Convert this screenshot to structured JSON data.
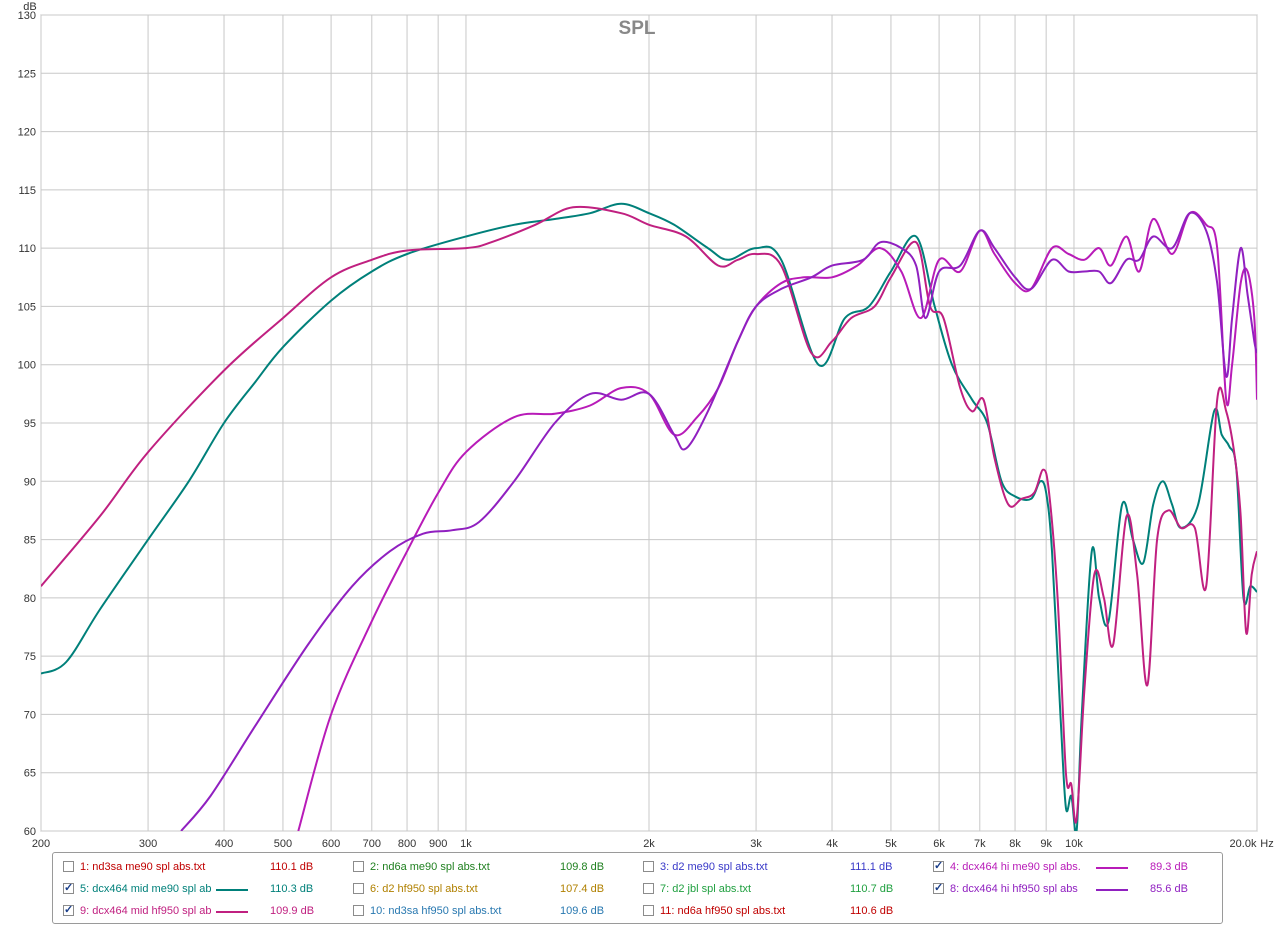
{
  "chart_data": {
    "type": "line",
    "title": "SPL",
    "ylabel": "dB",
    "xlabel": "",
    "x_unit": "Hz",
    "x_scale": "log",
    "xlim": [
      200,
      20000
    ],
    "ylim": [
      60,
      130
    ],
    "y_ticks": [
      "130",
      "125",
      "120",
      "115",
      "110",
      "105",
      "100",
      "95",
      "90",
      "85",
      "80",
      "75",
      "70",
      "65",
      "60"
    ],
    "x_ticks": [
      {
        "v": 200,
        "label": "200"
      },
      {
        "v": 300,
        "label": "300"
      },
      {
        "v": 400,
        "label": "400"
      },
      {
        "v": 500,
        "label": "500"
      },
      {
        "v": 600,
        "label": "600"
      },
      {
        "v": 700,
        "label": "700"
      },
      {
        "v": 800,
        "label": "800"
      },
      {
        "v": 900,
        "label": "900"
      },
      {
        "v": 1000,
        "label": "1k"
      },
      {
        "v": 2000,
        "label": "2k"
      },
      {
        "v": 3000,
        "label": "3k"
      },
      {
        "v": 4000,
        "label": "4k"
      },
      {
        "v": 5000,
        "label": "5k"
      },
      {
        "v": 6000,
        "label": "6k"
      },
      {
        "v": 7000,
        "label": "7k"
      },
      {
        "v": 8000,
        "label": "8k"
      },
      {
        "v": 9000,
        "label": "9k"
      },
      {
        "v": 10000,
        "label": "10k"
      },
      {
        "v": 20000,
        "label": "20.0k"
      }
    ],
    "grid": true,
    "series": [
      {
        "name": "5: dcx464 mid me90 spl ab",
        "color": "#00807a",
        "points": [
          [
            200,
            73.5
          ],
          [
            220,
            74.5
          ],
          [
            250,
            79
          ],
          [
            300,
            85
          ],
          [
            350,
            90
          ],
          [
            400,
            95
          ],
          [
            450,
            98.5
          ],
          [
            500,
            101.5
          ],
          [
            600,
            105.5
          ],
          [
            700,
            108
          ],
          [
            800,
            109.5
          ],
          [
            1000,
            111
          ],
          [
            1200,
            112
          ],
          [
            1400,
            112.5
          ],
          [
            1600,
            113
          ],
          [
            1800,
            113.8
          ],
          [
            2000,
            113
          ],
          [
            2200,
            112
          ],
          [
            2500,
            110
          ],
          [
            2700,
            109
          ],
          [
            3000,
            110
          ],
          [
            3300,
            109
          ],
          [
            3800,
            100
          ],
          [
            4200,
            104
          ],
          [
            4600,
            105
          ],
          [
            5000,
            108
          ],
          [
            5500,
            111
          ],
          [
            5900,
            105
          ],
          [
            6300,
            100
          ],
          [
            6800,
            97
          ],
          [
            7200,
            95
          ],
          [
            7600,
            90
          ],
          [
            8000,
            88.7
          ],
          [
            8500,
            88.5
          ],
          [
            8800,
            90
          ],
          [
            9000,
            89
          ],
          [
            9200,
            84
          ],
          [
            9500,
            70
          ],
          [
            9700,
            62
          ],
          [
            9900,
            63
          ],
          [
            10100,
            60
          ],
          [
            10300,
            70
          ],
          [
            10700,
            84
          ],
          [
            11000,
            80
          ],
          [
            11400,
            78
          ],
          [
            12000,
            88
          ],
          [
            12500,
            85
          ],
          [
            13000,
            83
          ],
          [
            13500,
            88
          ],
          [
            14000,
            90
          ],
          [
            14500,
            88
          ],
          [
            15000,
            86
          ],
          [
            16000,
            88
          ],
          [
            17000,
            96
          ],
          [
            17500,
            94
          ],
          [
            18000,
            93
          ],
          [
            18500,
            91
          ],
          [
            19000,
            80
          ],
          [
            19500,
            81
          ],
          [
            20000,
            80.5
          ]
        ]
      },
      {
        "name": "9: dcx464 mid hf950 spl ab",
        "color": "#c02080",
        "points": [
          [
            200,
            81
          ],
          [
            250,
            87
          ],
          [
            300,
            92.5
          ],
          [
            400,
            99.5
          ],
          [
            500,
            104
          ],
          [
            600,
            107.5
          ],
          [
            700,
            109
          ],
          [
            800,
            109.8
          ],
          [
            1000,
            110
          ],
          [
            1100,
            110.5
          ],
          [
            1300,
            112
          ],
          [
            1500,
            113.5
          ],
          [
            1800,
            113
          ],
          [
            2000,
            112
          ],
          [
            2300,
            111
          ],
          [
            2600,
            108.5
          ],
          [
            2800,
            109
          ],
          [
            3000,
            109.5
          ],
          [
            3300,
            108.5
          ],
          [
            3700,
            101
          ],
          [
            4000,
            102
          ],
          [
            4300,
            104
          ],
          [
            4700,
            105
          ],
          [
            5000,
            107.5
          ],
          [
            5500,
            110.5
          ],
          [
            5800,
            105
          ],
          [
            6100,
            104
          ],
          [
            6500,
            98
          ],
          [
            6800,
            96
          ],
          [
            7100,
            97
          ],
          [
            7400,
            92
          ],
          [
            7800,
            88
          ],
          [
            8200,
            88.5
          ],
          [
            8600,
            89
          ],
          [
            8900,
            91
          ],
          [
            9100,
            89
          ],
          [
            9400,
            80
          ],
          [
            9700,
            65
          ],
          [
            9900,
            64
          ],
          [
            10100,
            61
          ],
          [
            10400,
            72
          ],
          [
            10800,
            82
          ],
          [
            11200,
            80
          ],
          [
            11600,
            76
          ],
          [
            12200,
            87
          ],
          [
            12700,
            82
          ],
          [
            13200,
            72.5
          ],
          [
            13700,
            85
          ],
          [
            14300,
            87.5
          ],
          [
            15000,
            86
          ],
          [
            15800,
            86
          ],
          [
            16500,
            81
          ],
          [
            17200,
            97
          ],
          [
            17800,
            96
          ],
          [
            18400,
            92
          ],
          [
            18800,
            87
          ],
          [
            19200,
            77
          ],
          [
            19600,
            82
          ],
          [
            20000,
            84
          ]
        ]
      },
      {
        "name": "4: dcx464 hi me90 spl abs.",
        "color": "#b81bb8",
        "points": [
          [
            530,
            60
          ],
          [
            600,
            70
          ],
          [
            700,
            78
          ],
          [
            800,
            84
          ],
          [
            900,
            89
          ],
          [
            1000,
            92.5
          ],
          [
            1200,
            95.5
          ],
          [
            1400,
            95.8
          ],
          [
            1600,
            96.5
          ],
          [
            1800,
            98
          ],
          [
            2000,
            97.5
          ],
          [
            2200,
            94
          ],
          [
            2400,
            95.5
          ],
          [
            2600,
            98
          ],
          [
            2800,
            102
          ],
          [
            3000,
            105
          ],
          [
            3300,
            107
          ],
          [
            3600,
            107.5
          ],
          [
            4000,
            107.5
          ],
          [
            4400,
            108.5
          ],
          [
            4800,
            110
          ],
          [
            5200,
            108
          ],
          [
            5600,
            104
          ],
          [
            6000,
            109
          ],
          [
            6500,
            108
          ],
          [
            7000,
            111.5
          ],
          [
            7400,
            109.5
          ],
          [
            8000,
            107
          ],
          [
            8500,
            106.5
          ],
          [
            9200,
            110
          ],
          [
            9800,
            109.5
          ],
          [
            10400,
            109
          ],
          [
            11000,
            110
          ],
          [
            11500,
            108.5
          ],
          [
            12200,
            111
          ],
          [
            12800,
            108
          ],
          [
            13500,
            112.5
          ],
          [
            14500,
            109.5
          ],
          [
            15500,
            113
          ],
          [
            16500,
            112
          ],
          [
            17200,
            110
          ],
          [
            17800,
            97
          ],
          [
            18200,
            100
          ],
          [
            18800,
            107
          ],
          [
            19300,
            108
          ],
          [
            19800,
            104
          ],
          [
            20000,
            97
          ]
        ]
      },
      {
        "name": "8: dcx464 hi hf950 spl abs",
        "color": "#9020c0",
        "points": [
          [
            340,
            60
          ],
          [
            380,
            63
          ],
          [
            450,
            69
          ],
          [
            550,
            76
          ],
          [
            650,
            81
          ],
          [
            750,
            84
          ],
          [
            850,
            85.5
          ],
          [
            950,
            85.8
          ],
          [
            1050,
            86.5
          ],
          [
            1200,
            90
          ],
          [
            1400,
            95
          ],
          [
            1600,
            97.5
          ],
          [
            1800,
            97
          ],
          [
            2000,
            97.5
          ],
          [
            2200,
            94
          ],
          [
            2300,
            92.8
          ],
          [
            2500,
            96
          ],
          [
            2800,
            102
          ],
          [
            3000,
            105
          ],
          [
            3300,
            106.5
          ],
          [
            3700,
            107.5
          ],
          [
            4000,
            108.5
          ],
          [
            4500,
            109
          ],
          [
            4800,
            110.5
          ],
          [
            5200,
            110
          ],
          [
            5500,
            108.5
          ],
          [
            5700,
            104
          ],
          [
            6000,
            108
          ],
          [
            6500,
            108.5
          ],
          [
            7000,
            111.5
          ],
          [
            7400,
            110
          ],
          [
            8000,
            107.5
          ],
          [
            8500,
            106.5
          ],
          [
            9200,
            109
          ],
          [
            9800,
            108
          ],
          [
            10400,
            108
          ],
          [
            11000,
            108
          ],
          [
            11500,
            107
          ],
          [
            12200,
            109
          ],
          [
            12800,
            109
          ],
          [
            13500,
            111
          ],
          [
            14500,
            110
          ],
          [
            15500,
            113
          ],
          [
            16500,
            111.5
          ],
          [
            17200,
            107
          ],
          [
            17800,
            99
          ],
          [
            18200,
            104
          ],
          [
            18800,
            110
          ],
          [
            19300,
            106
          ],
          [
            19800,
            102
          ],
          [
            20000,
            101
          ]
        ]
      }
    ]
  },
  "legend": {
    "items": [
      {
        "label": "1: nd3sa me90 spl abs.txt",
        "value": "110.1 dB",
        "checked": false,
        "color": "#c00000",
        "line": false
      },
      {
        "label": "2: nd6a me90 spl abs.txt",
        "value": "109.8 dB",
        "checked": false,
        "color": "#208020",
        "line": false
      },
      {
        "label": "3: d2 me90 spl abs.txt",
        "value": "111.1 dB",
        "checked": false,
        "color": "#3838c8",
        "line": false
      },
      {
        "label": "4: dcx464 hi me90 spl abs.",
        "value": "89.3 dB",
        "checked": true,
        "color": "#b81bb8",
        "line": true
      },
      {
        "label": "5: dcx464 mid me90 spl ab",
        "value": "110.3 dB",
        "checked": true,
        "color": "#00807a",
        "line": true
      },
      {
        "label": "6: d2 hf950 spl abs.txt",
        "value": "107.4 dB",
        "checked": false,
        "color": "#b08000",
        "line": false
      },
      {
        "label": "7: d2 jbl spl abs.txt",
        "value": "110.7 dB",
        "checked": false,
        "color": "#20a040",
        "line": false
      },
      {
        "label": "8: dcx464 hi hf950 spl abs",
        "value": "85.6 dB",
        "checked": true,
        "color": "#9020c0",
        "line": true
      },
      {
        "label": "9: dcx464 mid hf950 spl ab",
        "value": "109.9 dB",
        "checked": true,
        "color": "#c02080",
        "line": true
      },
      {
        "label": "10: nd3sa hf950 spl abs.txt",
        "value": "109.6 dB",
        "checked": false,
        "color": "#2878b0",
        "line": false
      },
      {
        "label": "11: nd6a hf950 spl abs.txt",
        "value": "110.6 dB",
        "checked": false,
        "color": "#c00000",
        "line": false
      }
    ]
  }
}
